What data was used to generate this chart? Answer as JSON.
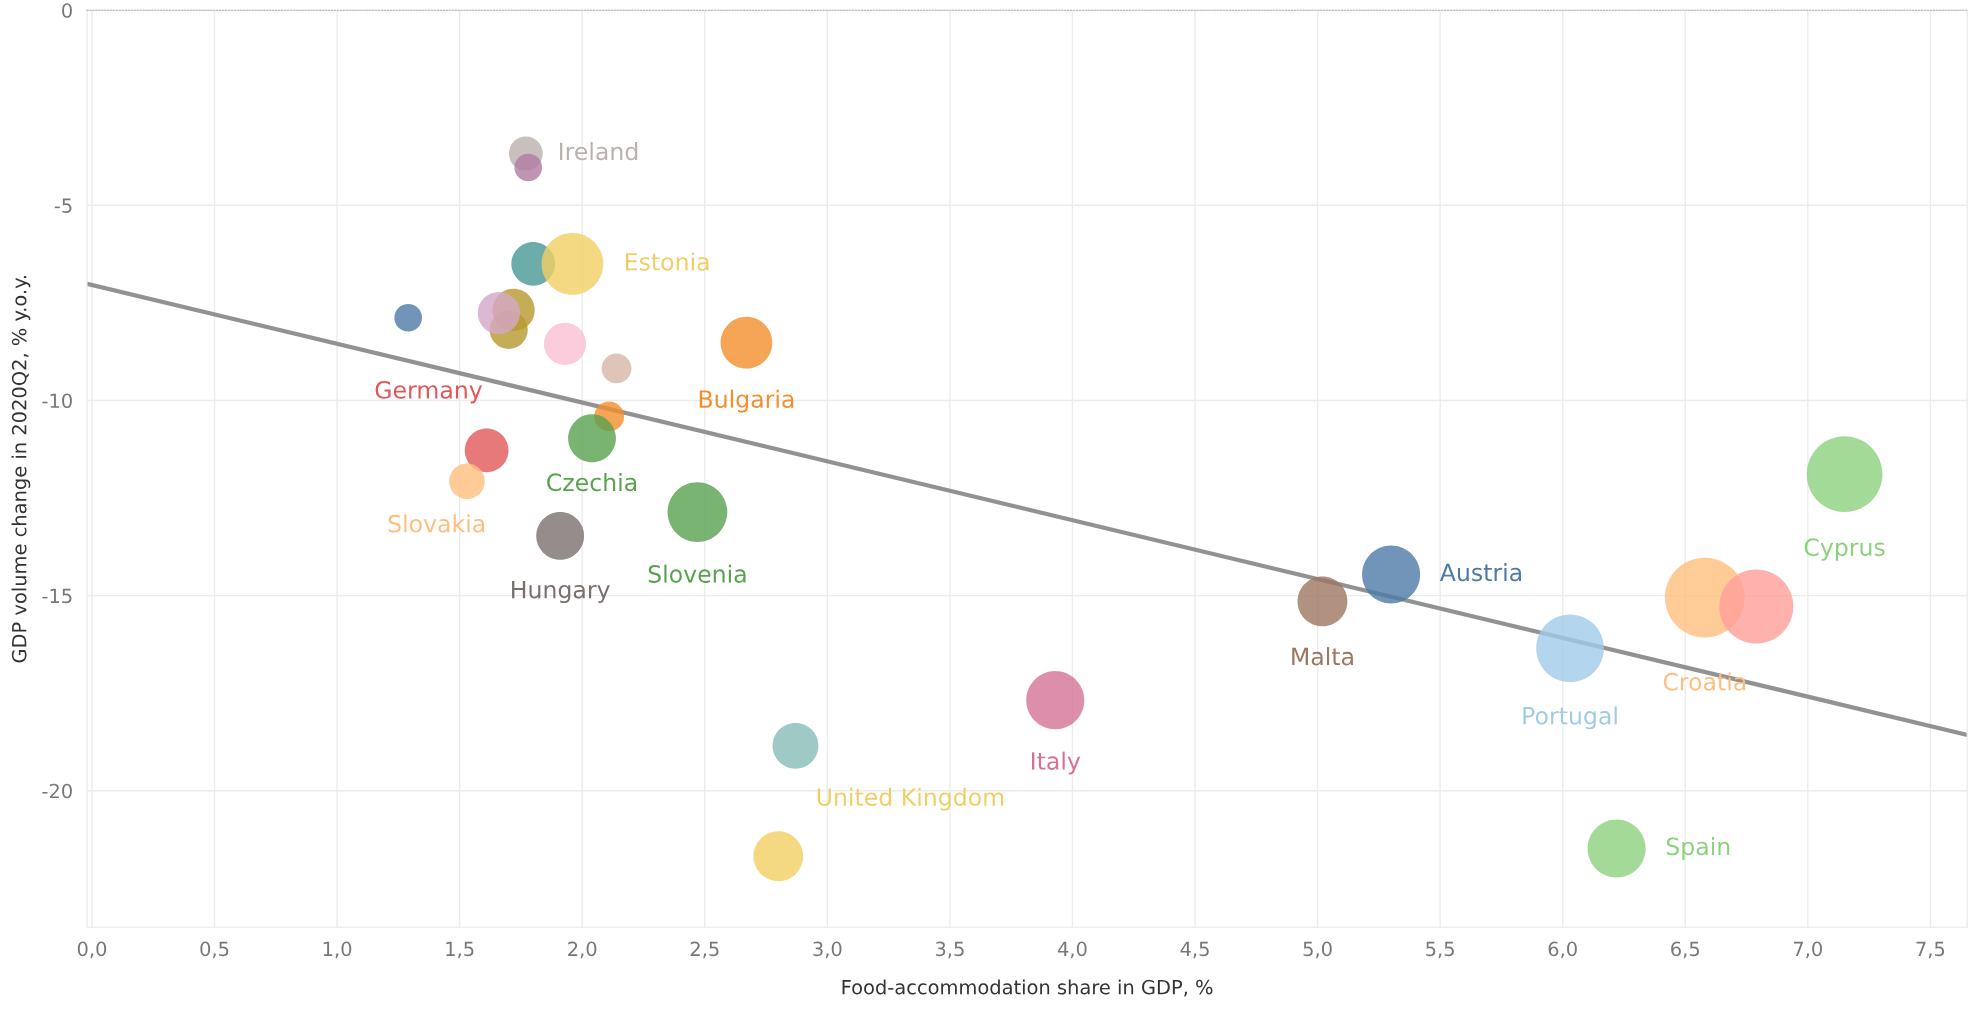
{
  "chart_data": {
    "type": "bubble",
    "xlabel": "Food-accommodation share in GDP, %",
    "ylabel": "GDP volume change in 2020Q2, % y.o.y.",
    "xlim": [
      -0.02,
      7.65
    ],
    "ylim": [
      -23.5,
      0
    ],
    "xticks": [
      {
        "value": 0,
        "label": "0,0"
      },
      {
        "value": 0.5,
        "label": "0,5"
      },
      {
        "value": 1,
        "label": "1,0"
      },
      {
        "value": 1.5,
        "label": "1,5"
      },
      {
        "value": 2,
        "label": "2,0"
      },
      {
        "value": 2.5,
        "label": "2,5"
      },
      {
        "value": 3,
        "label": "3,0"
      },
      {
        "value": 3.5,
        "label": "3,5"
      },
      {
        "value": 4,
        "label": "4,0"
      },
      {
        "value": 4.5,
        "label": "4,5"
      },
      {
        "value": 5,
        "label": "5,0"
      },
      {
        "value": 5.5,
        "label": "5,5"
      },
      {
        "value": 6,
        "label": "6,0"
      },
      {
        "value": 6.5,
        "label": "6,5"
      },
      {
        "value": 7,
        "label": "7,0"
      },
      {
        "value": 7.5,
        "label": "7,5"
      }
    ],
    "yticks": [
      0,
      -5,
      -10,
      -15,
      -20
    ],
    "grid": true,
    "legend": false,
    "series": [
      {
        "name": "Ireland",
        "color": "#bab0ac",
        "x": [
          1.77
        ],
        "values": [
          -3.67
        ],
        "sizes": [
          0.18
        ]
      },
      {
        "color": "#b07aa1",
        "x": [
          1.78
        ],
        "values": [
          -4.03
        ],
        "sizes": [
          0.12
        ]
      },
      {
        "color": "#499894",
        "x": [
          1.8
        ],
        "values": [
          -6.5
        ],
        "sizes": [
          0.3
        ]
      },
      {
        "name": "Estonia",
        "color": "#f1ce63",
        "x": [
          1.96
        ],
        "values": [
          -6.5
        ],
        "sizes": [
          0.6
        ]
      },
      {
        "color": "#4e79a7",
        "x": [
          1.29
        ],
        "values": [
          -7.88
        ],
        "sizes": [
          0.12
        ]
      },
      {
        "color": "#b6992d",
        "x": [
          1.72
        ],
        "values": [
          -7.68
        ],
        "sizes": [
          0.28
        ]
      },
      {
        "color": "#b6992d",
        "x": [
          1.7
        ],
        "values": [
          -8.19
        ],
        "sizes": [
          0.23
        ]
      },
      {
        "color": "#d4a6c8",
        "x": [
          1.66
        ],
        "values": [
          -7.76
        ],
        "sizes": [
          0.28
        ]
      },
      {
        "color": "#fabfd2",
        "x": [
          1.93
        ],
        "values": [
          -8.55
        ],
        "sizes": [
          0.28
        ]
      },
      {
        "color": "#d7b5a6",
        "x": [
          2.14
        ],
        "values": [
          -9.18
        ],
        "sizes": [
          0.14
        ]
      },
      {
        "name": "Bulgaria",
        "color": "#f28e2b",
        "x": [
          2.67
        ],
        "values": [
          -8.52
        ],
        "sizes": [
          0.42
        ]
      },
      {
        "color": "#f28e2b",
        "x": [
          2.11
        ],
        "values": [
          -10.41
        ],
        "sizes": [
          0.14
        ]
      },
      {
        "name": "Czechia",
        "color": "#59a14f",
        "x": [
          2.04
        ],
        "values": [
          -10.97
        ],
        "sizes": [
          0.36
        ]
      },
      {
        "name": "Germany",
        "color": "#e15759",
        "x": [
          1.61
        ],
        "values": [
          -11.28
        ],
        "sizes": [
          0.3
        ]
      },
      {
        "name": "Slovakia",
        "color": "#ffbe7d",
        "x": [
          1.53
        ],
        "values": [
          -12.07
        ],
        "sizes": [
          0.2
        ]
      },
      {
        "name": "Hungary",
        "color": "#79706e",
        "x": [
          1.91
        ],
        "values": [
          -13.47
        ],
        "sizes": [
          0.36
        ]
      },
      {
        "name": "Slovenia",
        "color": "#59a14f",
        "x": [
          2.47
        ],
        "values": [
          -12.86
        ],
        "sizes": [
          0.56
        ]
      },
      {
        "color": "#86bcb6",
        "x": [
          2.87
        ],
        "values": [
          -18.85
        ],
        "sizes": [
          0.33
        ]
      },
      {
        "name": "United Kingdom",
        "color": "#f1ce63",
        "x": [
          2.8
        ],
        "values": [
          -21.68
        ],
        "sizes": [
          0.39
        ]
      },
      {
        "name": "Italy",
        "color": "#d37295",
        "x": [
          3.93
        ],
        "values": [
          -17.68
        ],
        "sizes": [
          0.53
        ]
      },
      {
        "name": "Malta",
        "color": "#9d7660",
        "x": [
          5.02
        ],
        "values": [
          -15.15
        ],
        "sizes": [
          0.39
        ]
      },
      {
        "name": "Austria",
        "color": "#4e79a7",
        "x": [
          5.3
        ],
        "values": [
          -14.46
        ],
        "sizes": [
          0.53
        ]
      },
      {
        "name": "Portugal",
        "color": "#a0cbe8",
        "x": [
          6.03
        ],
        "values": [
          -16.35
        ],
        "sizes": [
          0.72
        ]
      },
      {
        "name": "Croatia",
        "color": "#ffbe7d",
        "x": [
          6.58
        ],
        "values": [
          -15.05
        ],
        "sizes": [
          1
        ]
      },
      {
        "color": "#ff9d9a",
        "x": [
          6.79
        ],
        "values": [
          -15.28
        ],
        "sizes": [
          0.86
        ]
      },
      {
        "name": "Cyprus",
        "color": "#8cd17d",
        "x": [
          7.15
        ],
        "values": [
          -11.89
        ],
        "sizes": [
          0.9
        ]
      },
      {
        "name": "Spain",
        "color": "#8cd17d",
        "x": [
          6.22
        ],
        "values": [
          -21.48
        ],
        "sizes": [
          0.53
        ]
      },
      {
        "type": "line",
        "color": "#7f7f7f",
        "x": [
          -0.02,
          7.65
        ],
        "values": [
          -7.01,
          -18.57
        ]
      }
    ]
  }
}
